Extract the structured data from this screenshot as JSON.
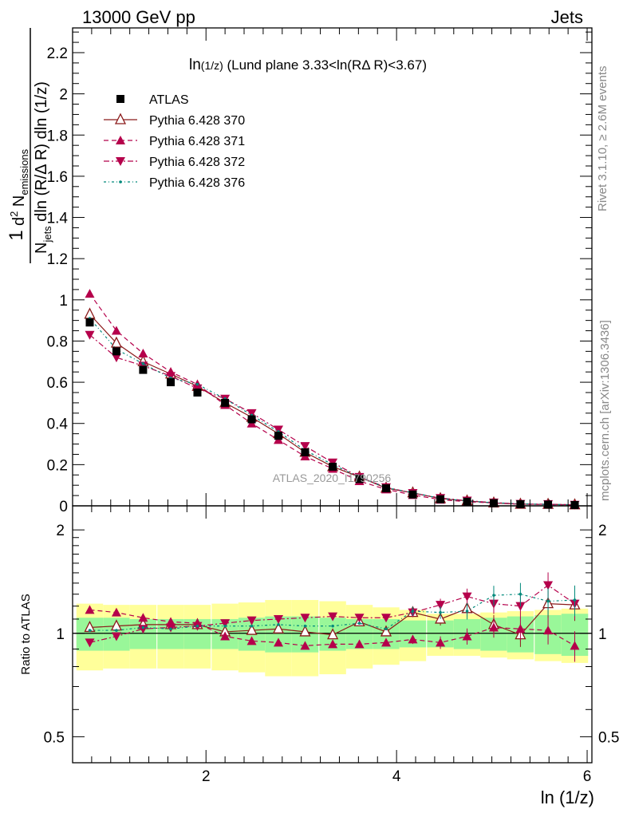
{
  "header": {
    "left": "13000 GeV pp",
    "right": "Jets"
  },
  "side_labels": {
    "rivet": "Rivet 3.1.10, ≥ 2.6M events",
    "mcplots": "mcplots.cern.ch [arXiv:1306.3436]"
  },
  "watermark": "ATLAS_2020_I1790256",
  "main_title": {
    "t1": "ln",
    "t2": "(1/z)",
    "t3": " (Lund plane 3.33<ln(RΔ R)<3.67)"
  },
  "y_title": {
    "one": "1",
    "n": "N",
    "jets": "jets",
    "d2_d": "d",
    "d2_2": "2",
    "d2_N": " N",
    "emissions": "emissions",
    "denominator": "dln (R/Δ R) dln (1/z)"
  },
  "ratio_ylabel": "Ratio to ATLAS",
  "xlabel": "ln (1/z)",
  "chart_data": {
    "type": "scatter",
    "x": [
      0.78,
      1.06,
      1.34,
      1.63,
      1.91,
      2.2,
      2.48,
      2.76,
      3.04,
      3.33,
      3.61,
      3.89,
      4.17,
      4.46,
      4.74,
      5.02,
      5.3,
      5.59,
      5.87
    ],
    "xlim": [
      0.6,
      6.05
    ],
    "ylim": [
      0,
      2.32
    ],
    "ratio_ylim": [
      0.42,
      2.35
    ],
    "x_ticks": [
      2,
      4,
      6
    ],
    "y_ticks": [
      "0",
      "0.2",
      "0.4",
      "0.6",
      "0.8",
      "1",
      "1.2",
      "1.4",
      "1.6",
      "1.8",
      "2",
      "2.2"
    ],
    "ratio_ticks": [
      "0.5",
      "1",
      "2"
    ],
    "series": [
      {
        "name": "ATLAS",
        "marker": "square",
        "color": "#000000",
        "values": [
          0.89,
          0.75,
          0.66,
          0.6,
          0.55,
          0.5,
          0.42,
          0.34,
          0.26,
          0.19,
          0.13,
          0.085,
          0.055,
          0.032,
          0.02,
          0.013,
          0.008,
          0.006,
          0.004
        ],
        "band_inner": [
          0.11,
          0.11,
          0.1,
          0.1,
          0.1,
          0.1,
          0.11,
          0.12,
          0.12,
          0.11,
          0.1,
          0.1,
          0.09,
          0.09,
          0.1,
          0.11,
          0.12,
          0.13,
          0.14
        ],
        "band_outer": [
          0.22,
          0.21,
          0.21,
          0.21,
          0.21,
          0.22,
          0.23,
          0.25,
          0.25,
          0.24,
          0.21,
          0.19,
          0.17,
          0.14,
          0.14,
          0.15,
          0.16,
          0.17,
          0.18
        ]
      },
      {
        "name": "Pythia 6.428 370",
        "marker": "open-triangle",
        "color": "#8b1a1a",
        "dash": "",
        "values": [
          0.93,
          0.79,
          0.7,
          0.64,
          0.58,
          0.5,
          0.43,
          0.35,
          0.26,
          0.19,
          0.14,
          0.086,
          0.063,
          0.035,
          0.024,
          0.014,
          0.008,
          0.0073,
          0.0049
        ],
        "ratio": [
          1.04,
          1.05,
          1.06,
          1.06,
          1.06,
          1.01,
          1.02,
          1.03,
          1.01,
          0.99,
          1.08,
          1.01,
          1.15,
          1.1,
          1.18,
          1.06,
          0.99,
          1.22,
          1.21
        ]
      },
      {
        "name": "Pythia 6.428 371",
        "marker": "triangle",
        "color": "#b5004b",
        "dash": "6,4",
        "values": [
          1.03,
          0.85,
          0.74,
          0.65,
          0.59,
          0.49,
          0.4,
          0.32,
          0.24,
          0.18,
          0.12,
          0.08,
          0.053,
          0.03,
          0.02,
          0.014,
          0.008,
          0.006,
          0.004
        ],
        "ratio": [
          1.17,
          1.15,
          1.11,
          1.08,
          1.07,
          0.98,
          0.95,
          0.94,
          0.92,
          0.93,
          0.93,
          0.94,
          0.96,
          0.94,
          0.98,
          1.04,
          1.03,
          1.02,
          0.92
        ]
      },
      {
        "name": "Pythia 6.428 372",
        "marker": "down-triangle",
        "color": "#b5004b",
        "dash": "7,3,2,3",
        "values": [
          0.83,
          0.72,
          0.68,
          0.63,
          0.57,
          0.52,
          0.45,
          0.37,
          0.29,
          0.21,
          0.14,
          0.09,
          0.062,
          0.038,
          0.025,
          0.016,
          0.009,
          0.008,
          0.005
        ],
        "ratio": [
          0.94,
          0.98,
          1.03,
          1.04,
          1.05,
          1.07,
          1.09,
          1.1,
          1.11,
          1.12,
          1.11,
          1.11,
          1.15,
          1.21,
          1.28,
          1.22,
          1.2,
          1.38,
          1.22
        ]
      },
      {
        "name": "Pythia 6.428 376",
        "marker": "dot",
        "color": "#00897b",
        "dash": "3,3,1,3",
        "values": [
          0.91,
          0.76,
          0.69,
          0.62,
          0.59,
          0.52,
          0.44,
          0.36,
          0.27,
          0.2,
          0.14,
          0.088,
          0.064,
          0.036,
          0.024,
          0.015,
          0.01,
          0.007,
          0.005
        ],
        "ratio": [
          1.02,
          1.02,
          1.04,
          1.03,
          1.05,
          1.05,
          1.05,
          1.06,
          1.05,
          1.05,
          1.07,
          1.03,
          1.16,
          1.15,
          1.16,
          1.29,
          1.3,
          1.24,
          1.25
        ]
      }
    ]
  }
}
